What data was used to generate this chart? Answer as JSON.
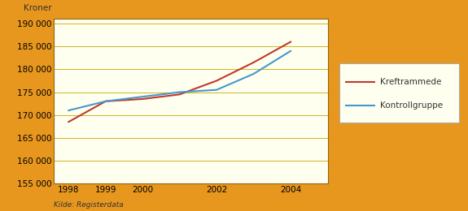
{
  "years": [
    1998,
    1999,
    2000,
    2001,
    2002,
    2003,
    2004
  ],
  "kreftrammede": [
    168500,
    173000,
    173500,
    174500,
    177500,
    181500,
    186000
  ],
  "kontrollgruppe": [
    171000,
    173000,
    174000,
    175000,
    175500,
    179000,
    184000
  ],
  "ylim": [
    155000,
    191000
  ],
  "yticks": [
    155000,
    160000,
    165000,
    170000,
    175000,
    180000,
    185000,
    190000
  ],
  "xticks": [
    1998,
    1999,
    2000,
    2002,
    2004
  ],
  "ylabel": "Kroner",
  "source": "Kilde: Registerdata",
  "legend_labels": [
    "Kreftrammede",
    "Kontrollgruppe"
  ],
  "line_color_red": "#c0392b",
  "line_color_blue": "#4499cc",
  "bg_outer": "#e8971e",
  "bg_plot": "#fffff0",
  "grid_color": "#c8aa00",
  "axis_color": "#8B6914",
  "legend_bg": "#fffff0",
  "legend_border": "#aaaaaa",
  "text_color": "#333333"
}
